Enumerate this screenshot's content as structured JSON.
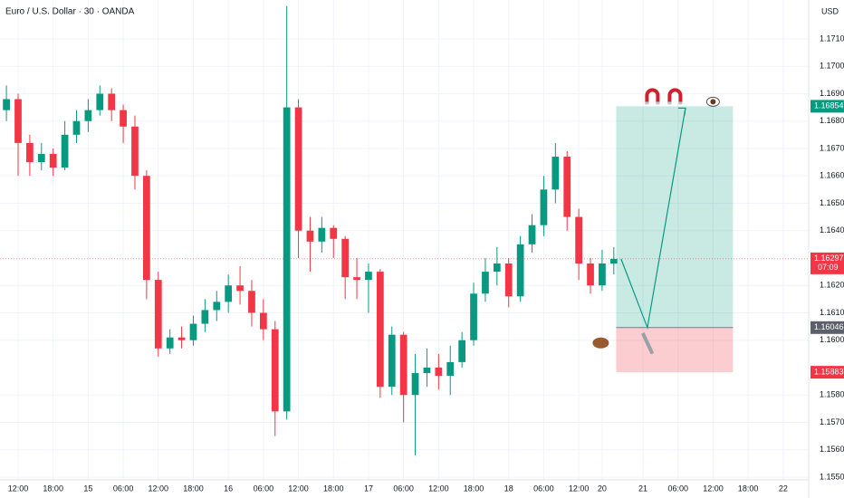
{
  "chart_data": {
    "type": "candlestick",
    "title": "Euro / U.S. Dollar · 30 · OANDA",
    "currency": "USD",
    "up_color": "#089981",
    "down_color": "#f23645",
    "grid": true,
    "x": [
      -2,
      0,
      2,
      4,
      6,
      8,
      10,
      12,
      14,
      16,
      18,
      20,
      22,
      24,
      26,
      28,
      30,
      32,
      34,
      36,
      38,
      40,
      42,
      44,
      46,
      48,
      50,
      52,
      54,
      56,
      58,
      60,
      62,
      64,
      66,
      68,
      70,
      72,
      74,
      76,
      78,
      80,
      82,
      84,
      86,
      88,
      90,
      92,
      94,
      96,
      98,
      100,
      102
    ],
    "open": [
      1.1684,
      1.1688,
      1.1672,
      1.1665,
      1.1668,
      1.1663,
      1.1675,
      1.168,
      1.1684,
      1.169,
      1.1684,
      1.1678,
      1.166,
      1.1622,
      1.1597,
      1.1601,
      1.16,
      1.1606,
      1.1611,
      1.1614,
      1.162,
      1.1618,
      1.161,
      1.1604,
      1.1574,
      1.1685,
      1.164,
      1.1636,
      1.1641,
      1.1637,
      1.1623,
      1.1622,
      1.1625,
      1.1583,
      1.1602,
      1.158,
      1.1588,
      1.159,
      1.1587,
      1.1592,
      1.16,
      1.1617,
      1.1625,
      1.1628,
      1.1616,
      1.1635,
      1.1642,
      1.1655,
      1.1667,
      1.1645,
      1.1628,
      1.162,
      1.1628
    ],
    "high": [
      1.1693,
      1.169,
      1.1675,
      1.1672,
      1.167,
      1.168,
      1.1684,
      1.1688,
      1.1693,
      1.1692,
      1.1686,
      1.1682,
      1.1662,
      1.1625,
      1.1604,
      1.1605,
      1.1609,
      1.1615,
      1.1618,
      1.1624,
      1.1627,
      1.1622,
      1.1615,
      1.1607,
      1.1722,
      1.1688,
      1.1645,
      1.1645,
      1.1642,
      1.1638,
      1.163,
      1.1628,
      1.1626,
      1.1605,
      1.1603,
      1.1595,
      1.1597,
      1.1595,
      1.1598,
      1.1603,
      1.1621,
      1.163,
      1.1634,
      1.163,
      1.1638,
      1.1646,
      1.166,
      1.1672,
      1.1669,
      1.1648,
      1.163,
      1.1633,
      1.1634
    ],
    "low": [
      1.168,
      1.166,
      1.166,
      1.1662,
      1.166,
      1.1662,
      1.1672,
      1.1676,
      1.1682,
      1.168,
      1.1672,
      1.1655,
      1.1615,
      1.1594,
      1.1595,
      1.1597,
      1.1598,
      1.1603,
      1.1607,
      1.161,
      1.1613,
      1.1605,
      1.16,
      1.1565,
      1.1571,
      1.163,
      1.1625,
      1.1632,
      1.163,
      1.1615,
      1.1615,
      1.161,
      1.1579,
      1.158,
      1.157,
      1.1558,
      1.1583,
      1.1582,
      1.158,
      1.159,
      1.1598,
      1.1614,
      1.162,
      1.1612,
      1.1614,
      1.1632,
      1.1638,
      1.165,
      1.164,
      1.1622,
      1.1617,
      1.1618,
      1.1624
    ],
    "close": [
      1.1688,
      1.1672,
      1.1665,
      1.1668,
      1.1663,
      1.1675,
      1.168,
      1.1684,
      1.169,
      1.1684,
      1.1678,
      1.166,
      1.1622,
      1.1597,
      1.1601,
      1.16,
      1.1606,
      1.1611,
      1.1614,
      1.162,
      1.1618,
      1.161,
      1.1604,
      1.1574,
      1.1685,
      1.164,
      1.1636,
      1.1641,
      1.1637,
      1.1623,
      1.1622,
      1.1625,
      1.1583,
      1.1602,
      1.158,
      1.1588,
      1.159,
      1.1587,
      1.1592,
      1.16,
      1.1617,
      1.1625,
      1.1628,
      1.1616,
      1.1635,
      1.1642,
      1.1655,
      1.1667,
      1.1645,
      1.1628,
      1.162,
      1.1628,
      1.16297
    ],
    "xlim": [
      -3.1,
      134.9
    ],
    "ylim": [
      1.1549,
      1.17242
    ],
    "xticks": [
      {
        "value": 0,
        "label": "12:00"
      },
      {
        "value": 6,
        "label": "18:00"
      },
      {
        "value": 12,
        "label": "15"
      },
      {
        "value": 18,
        "label": "06:00"
      },
      {
        "value": 24,
        "label": "12:00"
      },
      {
        "value": 30,
        "label": "18:00"
      },
      {
        "value": 36,
        "label": "16"
      },
      {
        "value": 42,
        "label": "06:00"
      },
      {
        "value": 48,
        "label": "12:00"
      },
      {
        "value": 54,
        "label": "18:00"
      },
      {
        "value": 60,
        "label": "17"
      },
      {
        "value": 66,
        "label": "06:00"
      },
      {
        "value": 72,
        "label": "12:00"
      },
      {
        "value": 78,
        "label": "18:00"
      },
      {
        "value": 84,
        "label": "18"
      },
      {
        "value": 90,
        "label": "06:00"
      },
      {
        "value": 96,
        "label": "12:00"
      },
      {
        "value": 100,
        "label": "20"
      },
      {
        "value": 107,
        "label": "21"
      },
      {
        "value": 113,
        "label": "06:00"
      },
      {
        "value": 119,
        "label": "12:00"
      },
      {
        "value": 125,
        "label": "18:00"
      },
      {
        "value": 131,
        "label": "22"
      }
    ],
    "yticks": [
      {
        "value": 1.171,
        "label": "1.17100"
      },
      {
        "value": 1.17,
        "label": "1.17000"
      },
      {
        "value": 1.169,
        "label": "1.16900"
      },
      {
        "value": 1.168,
        "label": "1.16800"
      },
      {
        "value": 1.167,
        "label": "1.16700"
      },
      {
        "value": 1.166,
        "label": "1.16600"
      },
      {
        "value": 1.165,
        "label": "1.16500"
      },
      {
        "value": 1.164,
        "label": "1.16400"
      },
      {
        "value": 1.162,
        "label": "1.16200"
      },
      {
        "value": 1.161,
        "label": "1.16100"
      },
      {
        "value": 1.16,
        "label": "1.16000"
      },
      {
        "value": 1.158,
        "label": "1.15800"
      },
      {
        "value": 1.157,
        "label": "1.15700"
      },
      {
        "value": 1.156,
        "label": "1.15600"
      },
      {
        "value": 1.155,
        "label": "1.15500"
      }
    ],
    "current_price": 1.16297,
    "countdown": "07:09",
    "position": {
      "target": 1.16854,
      "entry": 1.16046,
      "stop": 1.15883,
      "xrange": [
        102.4,
        122.4
      ]
    }
  }
}
